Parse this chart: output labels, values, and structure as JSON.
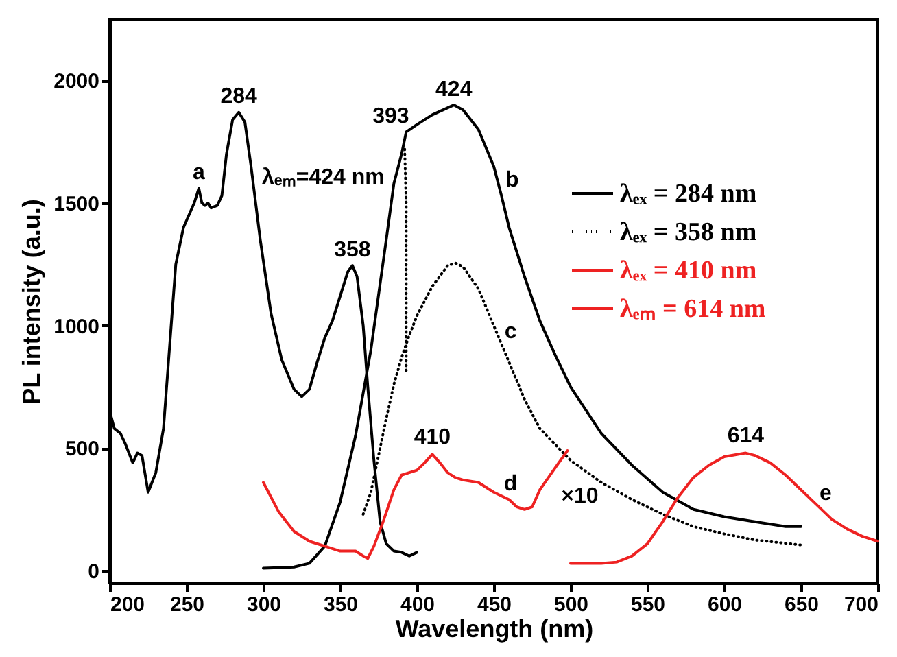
{
  "chart_data": {
    "type": "line",
    "xlabel": "Wavelength (nm)",
    "ylabel": "PL intensity (a.u.)",
    "xlim": [
      200,
      700
    ],
    "xticks": [
      200,
      250,
      300,
      350,
      400,
      450,
      500,
      550,
      600,
      650,
      700
    ],
    "ylim": [
      -50,
      2250
    ],
    "yticks": [
      0,
      500,
      1000,
      1500,
      2000
    ],
    "grid": false,
    "legend": "right",
    "series": [
      {
        "color": "#000000",
        "x": [
          200,
          203,
          207,
          210,
          215,
          218,
          221,
          225,
          230,
          235,
          240,
          243,
          248,
          255,
          258,
          260,
          262,
          264,
          266,
          270,
          273,
          276,
          280,
          284,
          288,
          292,
          298,
          305,
          312,
          320,
          325,
          330,
          335,
          340,
          345,
          350,
          355,
          358,
          361,
          365,
          368,
          372,
          376,
          380,
          385,
          390,
          395,
          400
        ],
        "values": [
          650,
          580,
          560,
          520,
          440,
          480,
          470,
          320,
          400,
          580,
          1000,
          1250,
          1400,
          1500,
          1560,
          1500,
          1490,
          1500,
          1480,
          1490,
          1530,
          1700,
          1840,
          1870,
          1830,
          1650,
          1350,
          1050,
          860,
          740,
          710,
          740,
          850,
          950,
          1020,
          1120,
          1220,
          1245,
          1200,
          1000,
          750,
          450,
          200,
          110,
          80,
          75,
          60,
          75
        ]
      },
      {
        "name": "λₑₓ = 284 nm",
        "color": "#000000",
        "x": [
          300,
          310,
          320,
          330,
          340,
          350,
          360,
          370,
          380,
          385,
          390,
          393,
          400,
          410,
          424,
          430,
          440,
          450,
          455,
          460,
          470,
          480,
          490,
          500,
          520,
          540,
          560,
          580,
          600,
          620,
          640,
          650
        ],
        "values": [
          10,
          12,
          15,
          30,
          100,
          280,
          550,
          900,
          1350,
          1580,
          1700,
          1790,
          1820,
          1860,
          1900,
          1880,
          1800,
          1650,
          1530,
          1400,
          1200,
          1020,
          880,
          750,
          560,
          430,
          320,
          250,
          220,
          200,
          180,
          180
        ]
      },
      {
        "name": "λₑₓ = 358 nm",
        "color": "#000000",
        "line_style": "dotted",
        "x": [
          365,
          370,
          375,
          380,
          385,
          390,
          395,
          400,
          410,
          420,
          425,
          430,
          440,
          450,
          460,
          470,
          480,
          500,
          520,
          540,
          560,
          580,
          600,
          620,
          650
        ],
        "values": [
          230,
          320,
          470,
          620,
          760,
          870,
          960,
          1040,
          1160,
          1245,
          1255,
          1240,
          1150,
          1000,
          850,
          700,
          580,
          450,
          360,
          290,
          230,
          180,
          150,
          125,
          105
        ]
      },
      {
        "color": "#000000",
        "line_style": "dotted",
        "x": [
          392,
          393,
          393
        ],
        "values": [
          1720,
          1500,
          800
        ]
      },
      {
        "name": "λₑₓ = 410 nm",
        "color": "#ee2222",
        "x": [
          300,
          305,
          310,
          315,
          320,
          330,
          340,
          350,
          360,
          365,
          368,
          372,
          378,
          385,
          390,
          395,
          400,
          405,
          410,
          415,
          420,
          425,
          430,
          440,
          450,
          460,
          465,
          470,
          475,
          480,
          490,
          498
        ],
        "values": [
          360,
          300,
          240,
          200,
          160,
          120,
          100,
          80,
          80,
          60,
          50,
          100,
          200,
          330,
          390,
          400,
          410,
          440,
          475,
          440,
          400,
          380,
          370,
          360,
          320,
          290,
          260,
          250,
          260,
          330,
          420,
          490
        ]
      },
      {
        "name": "λₑₘ = 614 nm",
        "color": "#ee2222",
        "x": [
          500,
          520,
          530,
          540,
          550,
          560,
          570,
          580,
          590,
          600,
          614,
          620,
          630,
          640,
          650,
          660,
          670,
          680,
          690,
          700
        ],
        "values": [
          30,
          30,
          35,
          60,
          110,
          200,
          300,
          380,
          430,
          465,
          480,
          470,
          440,
          390,
          330,
          270,
          210,
          170,
          140,
          120
        ]
      }
    ],
    "annotations": [
      {
        "text": "a",
        "x": 258,
        "y": 1570
      },
      {
        "text": "284",
        "x": 284,
        "y": 1880
      },
      "λₑₘ=424 nm",
      {
        "text": "358",
        "x": 358,
        "y": 1255
      },
      "393",
      {
        "text": "424",
        "x": 424,
        "y": 1910
      },
      "b",
      "c",
      {
        "text": "410",
        "x": 410,
        "y": 490
      },
      {
        "text": "d",
        "x": 461,
        "y": 300
      },
      "×10",
      {
        "text": "614",
        "x": 614,
        "y": 495
      },
      {
        "text": "e",
        "x": 666,
        "y": 260
      }
    ]
  }
}
